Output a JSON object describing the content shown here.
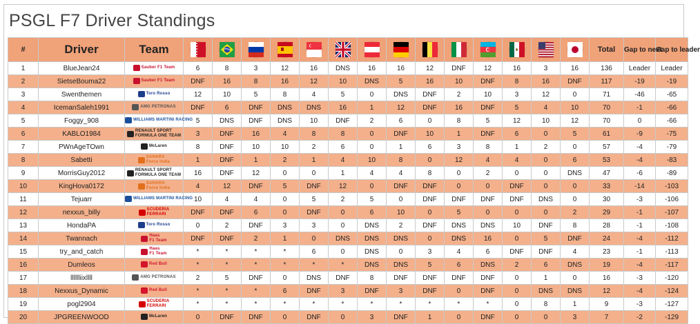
{
  "title": "PSGL F7 Driver Standings",
  "headers": {
    "pos": "#",
    "driver": "Driver",
    "team": "Team",
    "total": "Total",
    "gap_next": "Gap to next",
    "gap_leader": "Gap to leader"
  },
  "races": [
    {
      "flag": "bahrain-flag-icon"
    },
    {
      "flag": "brazil-flag-icon"
    },
    {
      "flag": "russia-flag-icon"
    },
    {
      "flag": "spain-flag-icon"
    },
    {
      "flag": "singapore-flag-icon"
    },
    {
      "flag": "great-britain-flag-icon"
    },
    {
      "flag": "austria-flag-icon"
    },
    {
      "flag": "germany-flag-icon"
    },
    {
      "flag": "belgium-flag-icon"
    },
    {
      "flag": "italy-flag-icon"
    },
    {
      "flag": "azerbaijan-flag-icon"
    },
    {
      "flag": "mexico-flag-icon"
    },
    {
      "flag": "usa-flag-icon"
    },
    {
      "flag": "japan-flag-icon"
    }
  ],
  "teams": {
    "sauber": {
      "line1": "Sauber F1 Team",
      "line2": "",
      "color": "#c8102e",
      "icon": "sauber-logo-icon"
    },
    "tororosso": {
      "line1": "Toro Rosso",
      "line2": "",
      "color": "#1e3e8c",
      "icon": "toro-rosso-logo-icon"
    },
    "mercedes": {
      "line1": "AMG PETRONAS",
      "line2": "",
      "color": "#555555",
      "icon": "mercedes-logo-icon"
    },
    "williams": {
      "line1": "WILLIAMS MARTINI RACING",
      "line2": "",
      "color": "#1a4f9c",
      "icon": "williams-logo-icon"
    },
    "renault": {
      "line1": "RENAULT SPORT",
      "line2": "FORMULA ONE TEAM",
      "color": "#222222",
      "icon": "renault-logo-icon"
    },
    "mclaren": {
      "line1": "McLaren",
      "line2": "",
      "color": "#222222",
      "icon": "mclaren-logo-icon"
    },
    "forceindia": {
      "line1": "SAHARA",
      "line2": "Force India",
      "color": "#e26f1b",
      "icon": "force-india-logo-icon"
    },
    "ferrari": {
      "line1": "SCUDERIA",
      "line2": "FERRARI",
      "color": "#d40000",
      "icon": "ferrari-logo-icon"
    },
    "haas": {
      "line1": "Haas",
      "line2": "F1 Team",
      "color": "#c8102e",
      "icon": "haas-logo-icon"
    },
    "redbull": {
      "line1": "Red Bull",
      "line2": "",
      "color": "#d4142a",
      "icon": "red-bull-logo-icon"
    }
  },
  "rows": [
    {
      "pos": "1",
      "driver": "BlueJean24",
      "team": "sauber",
      "results": [
        "6",
        "8",
        "3",
        "12",
        "16",
        "DNS",
        "16",
        "16",
        "12",
        "DNF",
        "12",
        "16",
        "3",
        "16"
      ],
      "total": "136",
      "gap_next": "Leader",
      "gap_leader": "Leader"
    },
    {
      "pos": "2",
      "driver": "SietseBouma22",
      "team": "sauber",
      "results": [
        "DNF",
        "16",
        "8",
        "16",
        "12",
        "10",
        "DNS",
        "5",
        "16",
        "10",
        "DNF",
        "8",
        "16",
        "DNF"
      ],
      "total": "117",
      "gap_next": "-19",
      "gap_leader": "-19"
    },
    {
      "pos": "3",
      "driver": "Swenthemen",
      "team": "tororosso",
      "results": [
        "12",
        "10",
        "5",
        "8",
        "4",
        "5",
        "0",
        "DNS",
        "DNF",
        "2",
        "10",
        "3",
        "12",
        "0"
      ],
      "total": "71",
      "gap_next": "-46",
      "gap_leader": "-65"
    },
    {
      "pos": "4",
      "driver": "IcemanSaleh1991",
      "team": "mercedes",
      "results": [
        "DNF",
        "6",
        "DNF",
        "DNS",
        "DNS",
        "16",
        "1",
        "12",
        "DNF",
        "16",
        "DNF",
        "5",
        "4",
        "10"
      ],
      "total": "70",
      "gap_next": "-1",
      "gap_leader": "-66"
    },
    {
      "pos": "5",
      "driver": "Foggy_908",
      "team": "williams",
      "results": [
        "5",
        "DNS",
        "DNF",
        "DNS",
        "10",
        "DNF",
        "2",
        "6",
        "0",
        "8",
        "5",
        "12",
        "10",
        "12"
      ],
      "total": "70",
      "gap_next": "0",
      "gap_leader": "-66"
    },
    {
      "pos": "6",
      "driver": "KABLO1984",
      "team": "renault",
      "results": [
        "3",
        "DNF",
        "16",
        "4",
        "8",
        "8",
        "0",
        "DNF",
        "10",
        "1",
        "DNF",
        "6",
        "0",
        "5"
      ],
      "total": "61",
      "gap_next": "-9",
      "gap_leader": "-75"
    },
    {
      "pos": "7",
      "driver": "PWnAgeTOwn",
      "team": "mclaren",
      "results": [
        "8",
        "DNF",
        "10",
        "10",
        "2",
        "6",
        "0",
        "1",
        "6",
        "3",
        "8",
        "1",
        "2",
        "0"
      ],
      "total": "57",
      "gap_next": "-4",
      "gap_leader": "-79"
    },
    {
      "pos": "8",
      "driver": "Sabetti",
      "team": "forceindia",
      "results": [
        "1",
        "DNF",
        "1",
        "2",
        "1",
        "4",
        "10",
        "8",
        "0",
        "12",
        "4",
        "4",
        "0",
        "6"
      ],
      "total": "53",
      "gap_next": "-4",
      "gap_leader": "-83"
    },
    {
      "pos": "9",
      "driver": "MorrisGuy2012",
      "team": "renault",
      "results": [
        "16",
        "DNF",
        "12",
        "0",
        "0",
        "1",
        "4",
        "4",
        "8",
        "0",
        "2",
        "0",
        "0",
        "DNS"
      ],
      "total": "47",
      "gap_next": "-6",
      "gap_leader": "-89"
    },
    {
      "pos": "10",
      "driver": "KingHova0172",
      "team": "forceindia",
      "results": [
        "4",
        "12",
        "DNF",
        "5",
        "DNF",
        "12",
        "0",
        "DNF",
        "DNF",
        "0",
        "0",
        "DNF",
        "0",
        "0"
      ],
      "total": "33",
      "gap_next": "-14",
      "gap_leader": "-103"
    },
    {
      "pos": "11",
      "driver": "Tejuarr",
      "team": "williams",
      "results": [
        "10",
        "4",
        "4",
        "0",
        "5",
        "2",
        "5",
        "0",
        "DNF",
        "DNF",
        "DNF",
        "DNF",
        "DNS",
        "0"
      ],
      "total": "30",
      "gap_next": "-3",
      "gap_leader": "-106"
    },
    {
      "pos": "12",
      "driver": "nexxus_billy",
      "team": "ferrari",
      "results": [
        "DNF",
        "DNF",
        "6",
        "0",
        "DNF",
        "0",
        "6",
        "10",
        "0",
        "5",
        "0",
        "0",
        "0",
        "2"
      ],
      "total": "29",
      "gap_next": "-1",
      "gap_leader": "-107"
    },
    {
      "pos": "13",
      "driver": "HondaPA",
      "team": "tororosso",
      "results": [
        "0",
        "2",
        "DNF",
        "3",
        "3",
        "0",
        "DNS",
        "2",
        "DNF",
        "DNS",
        "DNS",
        "10",
        "DNF",
        "8"
      ],
      "total": "28",
      "gap_next": "-1",
      "gap_leader": "-108"
    },
    {
      "pos": "14",
      "driver": "Twannach",
      "team": "haas",
      "results": [
        "DNF",
        "DNF",
        "2",
        "1",
        "0",
        "DNS",
        "DNS",
        "DNS",
        "0",
        "DNS",
        "16",
        "0",
        "5",
        "DNF"
      ],
      "total": "24",
      "gap_next": "-4",
      "gap_leader": "-112"
    },
    {
      "pos": "15",
      "driver": "try_and_catch",
      "team": "haas",
      "results": [
        "*",
        "*",
        "*",
        "*",
        "6",
        "0",
        "DNS",
        "0",
        "3",
        "4",
        "6",
        "DNF",
        "DNF",
        "4"
      ],
      "total": "23",
      "gap_next": "-1",
      "gap_leader": "-113"
    },
    {
      "pos": "16",
      "driver": "Dumleos",
      "team": "redbull",
      "results": [
        "*",
        "*",
        "*",
        "*",
        "*",
        "*",
        "DNS",
        "DNS",
        "5",
        "6",
        "DNS",
        "2",
        "6",
        "DNS"
      ],
      "total": "19",
      "gap_next": "-4",
      "gap_leader": "-117"
    },
    {
      "pos": "17",
      "driver": "lllllliixllll",
      "team": "mercedes",
      "results": [
        "2",
        "5",
        "DNF",
        "0",
        "DNS",
        "DNF",
        "8",
        "DNF",
        "DNF",
        "DNF",
        "DNF",
        "0",
        "1",
        "0"
      ],
      "total": "16",
      "gap_next": "-3",
      "gap_leader": "-120"
    },
    {
      "pos": "18",
      "driver": "Nexxus_Dynamic",
      "team": "redbull",
      "results": [
        "*",
        "*",
        "*",
        "6",
        "DNF",
        "3",
        "DNF",
        "3",
        "DNF",
        "0",
        "DNF",
        "0",
        "DNS",
        "DNS"
      ],
      "total": "12",
      "gap_next": "-4",
      "gap_leader": "-124"
    },
    {
      "pos": "19",
      "driver": "pogl2904",
      "team": "ferrari",
      "results": [
        "*",
        "*",
        "*",
        "*",
        "*",
        "*",
        "*",
        "*",
        "*",
        "*",
        "*",
        "0",
        "8",
        "1"
      ],
      "total": "9",
      "gap_next": "-3",
      "gap_leader": "-127"
    },
    {
      "pos": "20",
      "driver": "JPGREENWOOD",
      "team": "mclaren",
      "results": [
        "0",
        "DNF",
        "DNF",
        "0",
        "DNF",
        "0",
        "3",
        "DNF",
        "1",
        "0",
        "DNF",
        "0",
        "0",
        "3"
      ],
      "total": "7",
      "gap_next": "-2",
      "gap_leader": "-129"
    }
  ]
}
